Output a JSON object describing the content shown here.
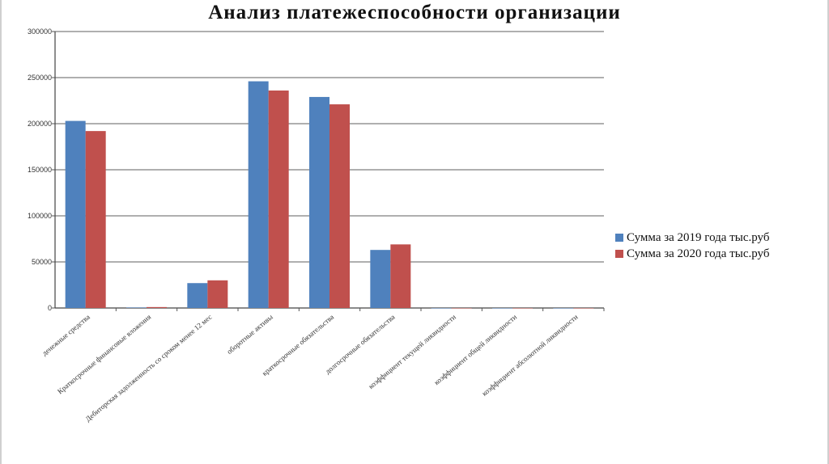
{
  "chart_data": {
    "type": "bar",
    "title": "Анализ платежеспособности организации",
    "categories": [
      "денежные средства",
      "Краткосрочные финансовые вложения",
      "Дебиторская задолженность со сроком менее 12 мес",
      "оборотные активы",
      "краткосрочные обязательства",
      "долгосрочные обязательства",
      "коэффициент текущей ликвидности",
      "коэффициент общей ликвидности",
      "коэффициент абсолютной ликвидности"
    ],
    "series": [
      {
        "name": "Сумма за 2019 года тыс.руб",
        "color": "#4f81bd",
        "values": [
          203000,
          500,
          27000,
          246000,
          229000,
          63000,
          1,
          1,
          0.1
        ]
      },
      {
        "name": "Сумма за 2020 года тыс.руб",
        "color": "#c0504d",
        "values": [
          192000,
          1000,
          30000,
          236000,
          221000,
          69000,
          1,
          1,
          0.1
        ]
      }
    ],
    "y_ticks": [
      "0",
      "50000",
      "100000",
      "150000",
      "200000",
      "250000",
      "300000"
    ],
    "ylim": [
      0,
      300000
    ],
    "grid": true,
    "legend_position": "right"
  }
}
